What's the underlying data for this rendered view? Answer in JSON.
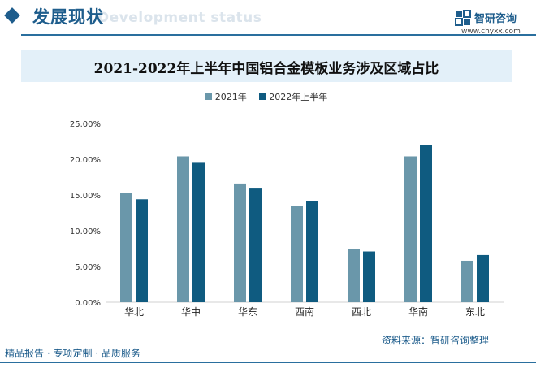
{
  "header": {
    "section_title": "发展现状",
    "section_subtitle": "Development status",
    "logo_name": "智研咨询",
    "logo_url": "www.chyxx.com"
  },
  "colors": {
    "brand": "#1e5d8c",
    "series_2021": "#6a97aa",
    "series_2022h1": "#0f5b80",
    "title_band": "#e3f0f9"
  },
  "chart_data": {
    "type": "bar",
    "title": "2021-2022年上半年中国铝合金模板业务涉及区域占比",
    "categories": [
      "华北",
      "华中",
      "华东",
      "西南",
      "西北",
      "华南",
      "东北"
    ],
    "series": [
      {
        "name": "2021年",
        "values": [
          15.3,
          20.4,
          16.6,
          13.5,
          7.5,
          20.4,
          5.8
        ]
      },
      {
        "name": "2022年上半年",
        "values": [
          14.4,
          19.5,
          15.9,
          14.2,
          7.1,
          22.0,
          6.6
        ]
      }
    ],
    "y_ticks": [
      "0.00%",
      "5.00%",
      "10.00%",
      "15.00%",
      "20.00%",
      "25.00%"
    ],
    "ylim": [
      0,
      25
    ],
    "grid": false,
    "legend_position": "top-center"
  },
  "watermark_text": "智研咨询",
  "footer": {
    "left": "精品报告 · 专项定制 · 品质服务",
    "source": "资料来源：智研咨询整理"
  }
}
